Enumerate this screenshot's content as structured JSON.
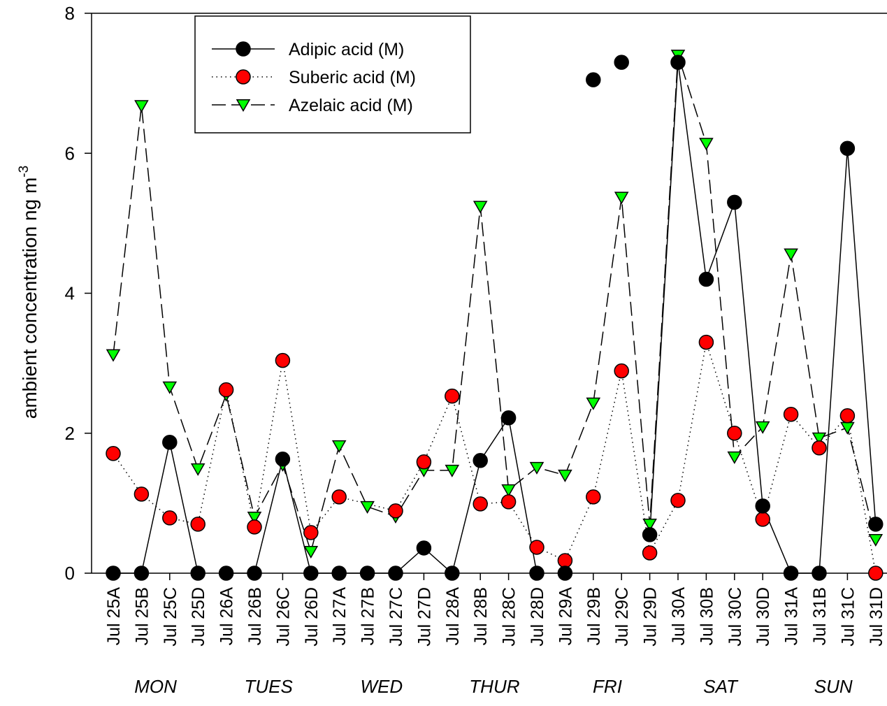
{
  "chart_data": {
    "type": "line",
    "ylabel": "ambient concentration ng m",
    "ylabel_superscript": "-3",
    "ylim": [
      0,
      8
    ],
    "yticks": [
      "0",
      "2",
      "4",
      "6",
      "8"
    ],
    "categories": [
      "Jul 25A",
      "Jul 25B",
      "Jul 25C",
      "Jul 25D",
      "Jul 26A",
      "Jul 26B",
      "Jul 26C",
      "Jul 26D",
      "Jul 27A",
      "Jul 27B",
      "Jul 27C",
      "Jul 27D",
      "Jul 28A",
      "Jul 28B",
      "Jul 28C",
      "Jul 28D",
      "Jul 29A",
      "Jul 29B",
      "Jul 29C",
      "Jul 29D",
      "Jul 30A",
      "Jul 30B",
      "Jul 30C",
      "Jul 30D",
      "Jul 31A",
      "Jul 31B",
      "Jul 31C",
      "Jul 31D"
    ],
    "day_labels": [
      "MON",
      "TUES",
      "WED",
      "THUR",
      "FRI",
      "SAT",
      "SUN"
    ],
    "legend_position": "top-left",
    "grid": false,
    "series": [
      {
        "name": "Adipic acid (M)",
        "line_style": "solid",
        "marker": "circle",
        "color": "#000000",
        "segments": [
          [
            0,
            3
          ],
          [
            4,
            15
          ],
          [
            19,
            27
          ]
        ],
        "values": [
          0,
          0,
          1.87,
          0,
          0,
          0,
          1.63,
          0,
          0,
          0,
          0,
          0.36,
          0,
          1.61,
          2.22,
          0,
          0,
          7.05,
          7.3,
          0.55,
          7.3,
          4.2,
          5.3,
          0.96,
          0,
          0,
          6.07,
          0.7
        ]
      },
      {
        "name": "Suberic acid (M)",
        "line_style": "dotted",
        "marker": "circle",
        "color": "#ff0000",
        "segments": [
          [
            0,
            27
          ]
        ],
        "values": [
          1.71,
          1.13,
          0.79,
          0.7,
          2.62,
          0.66,
          3.04,
          0.58,
          1.09,
          null,
          0.89,
          1.59,
          2.53,
          0.99,
          1.02,
          0.37,
          0.18,
          1.09,
          2.89,
          0.29,
          1.04,
          3.3,
          2.0,
          0.77,
          2.27,
          1.79,
          2.25,
          0
        ]
      },
      {
        "name": "Azelaic acid (M)",
        "line_style": "dashed",
        "marker": "triangle-down",
        "color": "#00ff00",
        "segments": [
          [
            0,
            27
          ]
        ],
        "values": [
          3.12,
          6.68,
          2.66,
          1.49,
          2.55,
          0.8,
          1.55,
          0.31,
          1.82,
          0.95,
          0.81,
          1.47,
          1.47,
          5.24,
          1.19,
          1.51,
          1.4,
          2.43,
          5.37,
          0.7,
          7.4,
          6.14,
          1.66,
          2.09,
          4.56,
          1.93,
          2.08,
          0.48
        ]
      }
    ]
  }
}
